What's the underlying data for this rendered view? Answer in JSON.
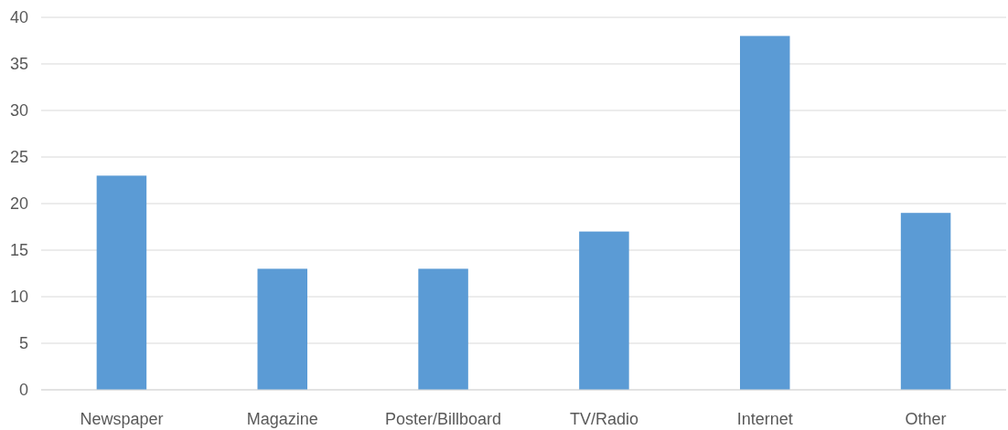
{
  "chart_data": {
    "type": "bar",
    "categories": [
      "Newspaper",
      "Magazine",
      "Poster/Billboard",
      "TV/Radio",
      "Internet",
      "Other"
    ],
    "values": [
      23,
      13,
      13,
      17,
      38,
      19
    ],
    "color": "#5b9bd5",
    "ylim": [
      0,
      40
    ],
    "yticks": [
      0,
      5,
      10,
      15,
      20,
      25,
      30,
      35,
      40
    ],
    "grid": "y"
  }
}
